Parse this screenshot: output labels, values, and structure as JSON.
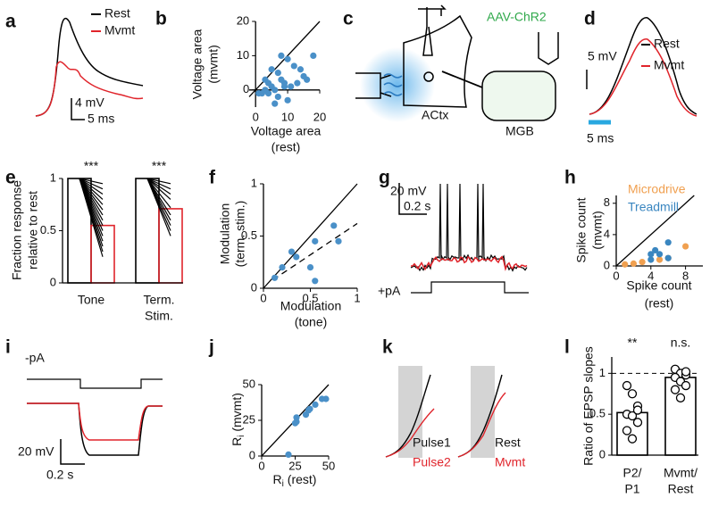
{
  "panels": {
    "a": {
      "label": "a",
      "legend": [
        "Rest",
        "Mvmt"
      ],
      "scale_bars": [
        "4 mV",
        "5 ms"
      ]
    },
    "c": {
      "label": "c",
      "virus": "AAV-ChR2",
      "regions": [
        "ACtx",
        "MGB"
      ]
    },
    "d": {
      "label": "d",
      "legend": [
        "Rest",
        "Mvmt"
      ],
      "scale_bars": [
        "5 mV",
        "5 ms"
      ]
    },
    "g": {
      "label": "g",
      "scale_bars": [
        "20 mV",
        "0.2 s"
      ],
      "stimulus": "+pA"
    },
    "i": {
      "label": "i",
      "scale_bars": [
        "20 mV",
        "0.2 s"
      ],
      "stimulus": "-pA"
    },
    "k": {
      "label": "k",
      "legend_left": [
        "Pulse1",
        "Pulse2"
      ],
      "legend_right": [
        "Rest",
        "Mvmt"
      ]
    }
  },
  "chart_data": [
    {
      "type": "scatter",
      "label": "b",
      "x_label": [
        "Voltage area",
        "(rest)"
      ],
      "y_label": [
        "Voltage area",
        "(mvmt)"
      ],
      "xlim": [
        -2,
        20
      ],
      "ylim": [
        -5,
        20
      ],
      "xticks": [
        0,
        10,
        20
      ],
      "yticks": [
        0,
        10,
        20
      ],
      "diagonal": true,
      "series": [
        {
          "color": "#4a90c8",
          "x": [
            8,
            10,
            5,
            12,
            18,
            7,
            14,
            16,
            8,
            9,
            4,
            5,
            3,
            6,
            1,
            2,
            7,
            11,
            13,
            10,
            6,
            3,
            15,
            9,
            4
          ],
          "values": [
            10,
            9,
            6,
            7,
            10,
            5,
            6,
            3,
            3,
            2,
            2,
            1,
            0,
            0,
            -1,
            -1,
            -2,
            1,
            2,
            -3,
            -4,
            3,
            4,
            1,
            -1
          ]
        }
      ]
    },
    {
      "type": "bar",
      "label": "e",
      "y_label": [
        "Fraction response",
        "relative to rest"
      ],
      "categories": [
        [
          "Tone"
        ],
        [
          "Term.",
          "Stim."
        ]
      ],
      "ylim": [
        0,
        1
      ],
      "yticks": [
        0,
        0.5,
        1
      ],
      "series": [
        {
          "color": "#000000",
          "values": [
            1,
            1
          ]
        },
        {
          "color": "#e0242b",
          "values": [
            0.55,
            0.71
          ]
        }
      ],
      "cells": [
        [
          0.95,
          0.9,
          0.85,
          0.8,
          0.75,
          0.7,
          0.65,
          0.6,
          0.55,
          0.5,
          0.45,
          0.4,
          0.35,
          0.3,
          0.25
        ],
        [
          0.95,
          0.9,
          0.85,
          0.8,
          0.72,
          0.65,
          0.6,
          0.55,
          0.5,
          0.45
        ]
      ],
      "significance": [
        "***",
        "***"
      ]
    },
    {
      "type": "scatter",
      "label": "f",
      "x_label": [
        "Modulation",
        "(tone)"
      ],
      "y_label": [
        "Modulation",
        "(term. stim.)"
      ],
      "xlim": [
        0,
        1
      ],
      "ylim": [
        0,
        1
      ],
      "xticks": [
        0,
        0.5,
        1
      ],
      "yticks": [
        0,
        0.5,
        1
      ],
      "diagonal": true,
      "fit_line": {
        "x": [
          0.1,
          1
        ],
        "values": [
          0.08,
          0.62
        ]
      },
      "series": [
        {
          "color": "#4a90c8",
          "x": [
            0.12,
            0.2,
            0.3,
            0.35,
            0.55,
            0.5,
            0.75,
            0.8,
            0.55
          ],
          "values": [
            0.1,
            0.2,
            0.35,
            0.3,
            0.45,
            0.2,
            0.6,
            0.45,
            0.07
          ]
        }
      ]
    },
    {
      "type": "scatter",
      "label": "h",
      "x_label": [
        "Spike count",
        "(rest)"
      ],
      "y_label": [
        "Spike count",
        "(mvmt)"
      ],
      "xlim": [
        0,
        10
      ],
      "ylim": [
        0,
        9
      ],
      "xticks": [
        0,
        4,
        8
      ],
      "yticks": [
        0,
        4,
        8
      ],
      "diagonal": true,
      "series": [
        {
          "name": "Microdrive",
          "color": "#f0a050",
          "x": [
            1,
            2,
            3,
            5,
            6,
            8
          ],
          "values": [
            0.2,
            0.3,
            0.5,
            0.8,
            1,
            2.5
          ]
        },
        {
          "name": "Treadmill",
          "color": "#3a86c0",
          "x": [
            4,
            4,
            4.5,
            5,
            6,
            6
          ],
          "values": [
            1.5,
            0.8,
            2,
            1.5,
            3,
            1
          ]
        }
      ]
    },
    {
      "type": "scatter",
      "label": "j",
      "x_label": {
        "text": "R",
        "sub": "i",
        "rest": " (rest)"
      },
      "y_label": {
        "text": "R",
        "sub": "i",
        "rest": " (mvmt)"
      },
      "xlim": [
        0,
        50
      ],
      "ylim": [
        0,
        50
      ],
      "xticks": [
        0,
        25,
        50
      ],
      "yticks": [
        0,
        25,
        50
      ],
      "diagonal": true,
      "series": [
        {
          "color": "#4a90c8",
          "x": [
            20,
            25,
            26,
            26,
            33,
            35,
            36,
            40,
            45,
            48
          ],
          "values": [
            1,
            23,
            27,
            24,
            29,
            32,
            33,
            36,
            40,
            40
          ]
        }
      ]
    },
    {
      "type": "bar",
      "label": "l",
      "y_label": [
        "Ratio of EPSP slopes"
      ],
      "categories": [
        [
          "P2/",
          "P1"
        ],
        [
          "Mvmt/",
          "Rest"
        ]
      ],
      "ylim": [
        0,
        1.2
      ],
      "yticks": [
        0,
        0.5,
        1
      ],
      "ref_line": 1,
      "series": [
        {
          "color": "#000000",
          "values": [
            0.52,
            0.95
          ]
        }
      ],
      "points": [
        [
          0.85,
          0.75,
          0.6,
          0.5,
          0.48,
          0.4,
          0.3,
          0.2,
          0.55
        ],
        [
          1.05,
          1.0,
          0.98,
          0.95,
          0.9,
          0.85,
          0.8,
          0.7,
          1.02
        ]
      ],
      "significance": [
        "**",
        "n.s."
      ]
    }
  ]
}
